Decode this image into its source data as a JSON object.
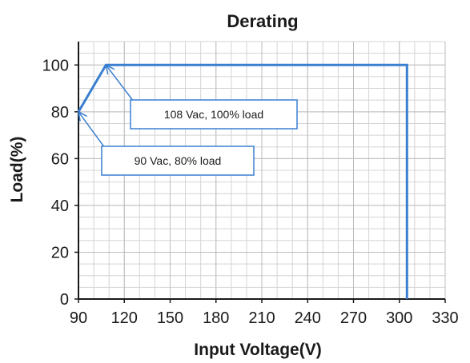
{
  "chart_data": {
    "type": "line",
    "title": "Derating",
    "xlabel": "Input Voltage(V)",
    "ylabel": "Load(%)",
    "xlim": [
      90,
      330
    ],
    "ylim": [
      0,
      110
    ],
    "xticks": [
      "90",
      "120",
      "150",
      "180",
      "210",
      "240",
      "270",
      "300",
      "330"
    ],
    "yticks": [
      "0",
      "20",
      "40",
      "60",
      "80",
      "100"
    ],
    "grid": true,
    "series": [
      {
        "color": "#3a7fd0",
        "x": [
          90,
          108,
          305,
          305
        ],
        "y": [
          80,
          100,
          100,
          0
        ]
      }
    ],
    "annotations": [
      {
        "text": "108 Vac, 100% load",
        "x": 108,
        "y": 100
      },
      {
        "text": "90 Vac, 80% load",
        "x": 90,
        "y": 80
      }
    ]
  }
}
